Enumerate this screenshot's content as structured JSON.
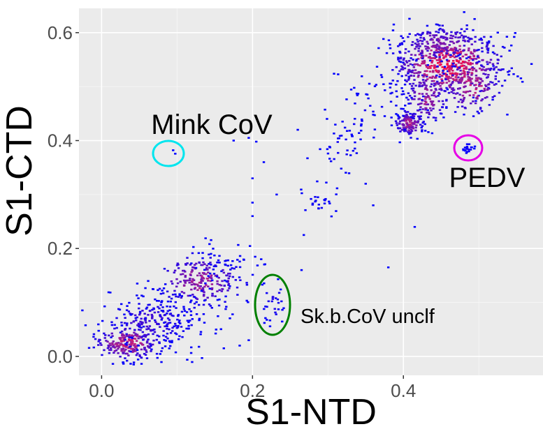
{
  "chart_data": {
    "type": "heatmap",
    "title": "",
    "xlabel": "S1-NTD",
    "ylabel": "S1-CTD",
    "xlim": [
      -0.03,
      0.585
    ],
    "ylim": [
      -0.035,
      0.645
    ],
    "x_ticks": [
      0.0,
      0.2,
      0.4
    ],
    "y_ticks": [
      0.0,
      0.2,
      0.4,
      0.6
    ],
    "x_tick_labels": [
      "0.0",
      "0.2",
      "0.4"
    ],
    "y_tick_labels": [
      "0.0",
      "0.2",
      "0.4",
      "0.6"
    ],
    "grid": true,
    "legend": "none",
    "colors": {
      "panel": "#ebebeb",
      "grid": "#ffffff",
      "low_density": "#0000ff",
      "mid_density": "#b0208c",
      "high_density": "#ff0a3c"
    },
    "clusters": [
      {
        "cx": 0.035,
        "cy": 0.025,
        "sx": 0.022,
        "sy": 0.016,
        "n": 220,
        "density": 0.6
      },
      {
        "cx": 0.06,
        "cy": 0.06,
        "sx": 0.03,
        "sy": 0.025,
        "n": 170,
        "density": 0.2
      },
      {
        "cx": 0.13,
        "cy": 0.14,
        "sx": 0.03,
        "sy": 0.025,
        "n": 220,
        "density": 0.45
      },
      {
        "cx": 0.09,
        "cy": 0.07,
        "sx": 0.035,
        "sy": 0.04,
        "n": 80,
        "density": 0.05
      },
      {
        "cx": 0.16,
        "cy": 0.17,
        "sx": 0.025,
        "sy": 0.02,
        "n": 50,
        "density": 0.05
      },
      {
        "cx": 0.228,
        "cy": 0.1,
        "sx": 0.008,
        "sy": 0.02,
        "n": 30,
        "density": 0.1
      },
      {
        "cx": 0.285,
        "cy": 0.285,
        "sx": 0.012,
        "sy": 0.015,
        "n": 25,
        "density": 0.05
      },
      {
        "cx": 0.32,
        "cy": 0.39,
        "sx": 0.015,
        "sy": 0.03,
        "n": 40,
        "density": 0.05
      },
      {
        "cx": 0.35,
        "cy": 0.45,
        "sx": 0.02,
        "sy": 0.03,
        "n": 25,
        "density": 0.05
      },
      {
        "cx": 0.38,
        "cy": 0.5,
        "sx": 0.02,
        "sy": 0.025,
        "n": 25,
        "density": 0.05
      },
      {
        "cx": 0.408,
        "cy": 0.432,
        "sx": 0.01,
        "sy": 0.012,
        "n": 120,
        "density": 0.5
      },
      {
        "cx": 0.43,
        "cy": 0.48,
        "sx": 0.015,
        "sy": 0.025,
        "n": 140,
        "density": 0.45
      },
      {
        "cx": 0.46,
        "cy": 0.54,
        "sx": 0.035,
        "sy": 0.03,
        "n": 520,
        "density": 0.85
      },
      {
        "cx": 0.45,
        "cy": 0.58,
        "sx": 0.03,
        "sy": 0.02,
        "n": 160,
        "density": 0.35
      },
      {
        "cx": 0.49,
        "cy": 0.5,
        "sx": 0.02,
        "sy": 0.025,
        "n": 140,
        "density": 0.55
      },
      {
        "cx": 0.487,
        "cy": 0.385,
        "sx": 0.004,
        "sy": 0.006,
        "n": 20,
        "density": 0.05
      },
      {
        "cx": 0.089,
        "cy": 0.378,
        "sx": 0.004,
        "sy": 0.004,
        "n": 2,
        "density": 0.0
      }
    ],
    "outliers": [
      [
        0.2,
        0.33
      ],
      [
        0.215,
        0.36
      ],
      [
        0.205,
        0.398
      ],
      [
        0.195,
        0.405
      ],
      [
        0.175,
        0.4
      ],
      [
        0.183,
        0.02
      ],
      [
        0.38,
        0.165
      ],
      [
        0.415,
        0.24
      ],
      [
        0.2,
        0.285
      ],
      [
        0.145,
        0.19
      ],
      [
        0.195,
        0.03
      ],
      [
        0.265,
        0.16
      ],
      [
        0.268,
        0.225
      ],
      [
        0.232,
        0.3
      ],
      [
        0.2,
        0.26
      ],
      [
        0.04,
        0.035
      ],
      [
        0.35,
        0.32
      ],
      [
        0.36,
        0.28
      ],
      [
        0.162,
        0.015
      ],
      [
        0.26,
        0.42
      ]
    ],
    "annotations": [
      {
        "name": "mink-cov",
        "text": "Mink CoV",
        "circle_color": "#00e5ee"
      },
      {
        "name": "pedv",
        "text": "PEDV",
        "circle_color": "#e600e6"
      },
      {
        "name": "sk-b-cov-unclf",
        "text": "Sk.b.CoV unclf",
        "circle_color": "#008000"
      }
    ]
  }
}
